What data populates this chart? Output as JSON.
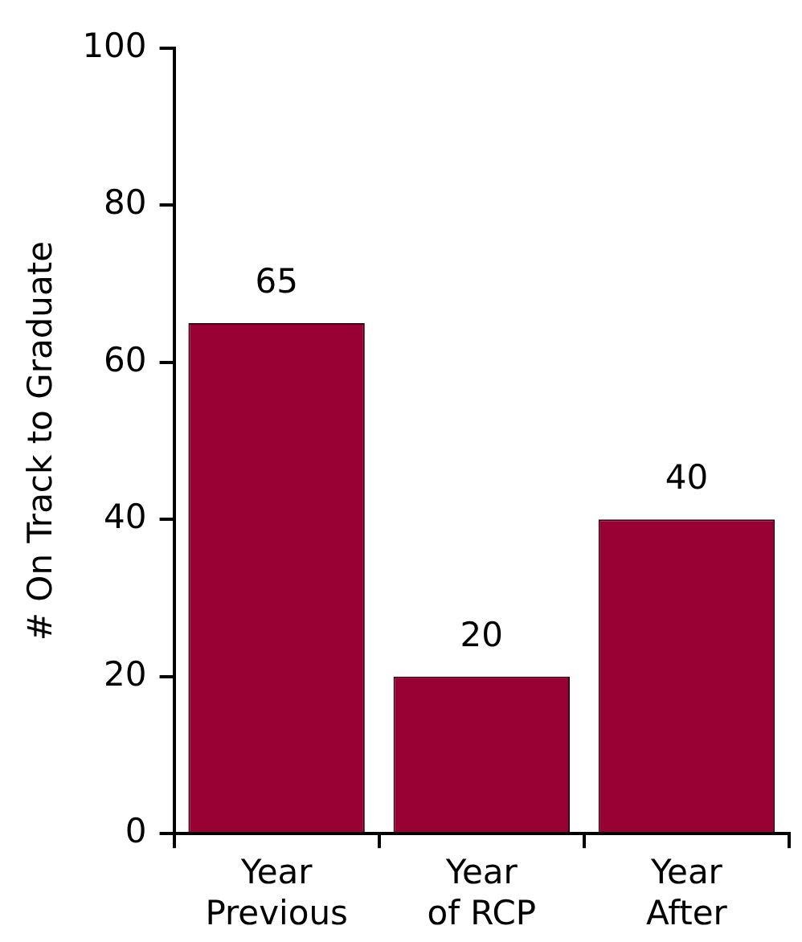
{
  "chart_data": {
    "type": "bar",
    "ylabel": "# On Track to Graduate",
    "categories": [
      "Year\nPrevious",
      "Year\nof RCP",
      "Year\nAfter"
    ],
    "values": [
      65,
      20,
      40
    ],
    "color": "#990033",
    "ylim": [
      0,
      100
    ],
    "yticks": [
      0,
      20,
      40,
      60,
      80,
      100
    ],
    "grid": false,
    "legend": false,
    "data_labels": true
  }
}
